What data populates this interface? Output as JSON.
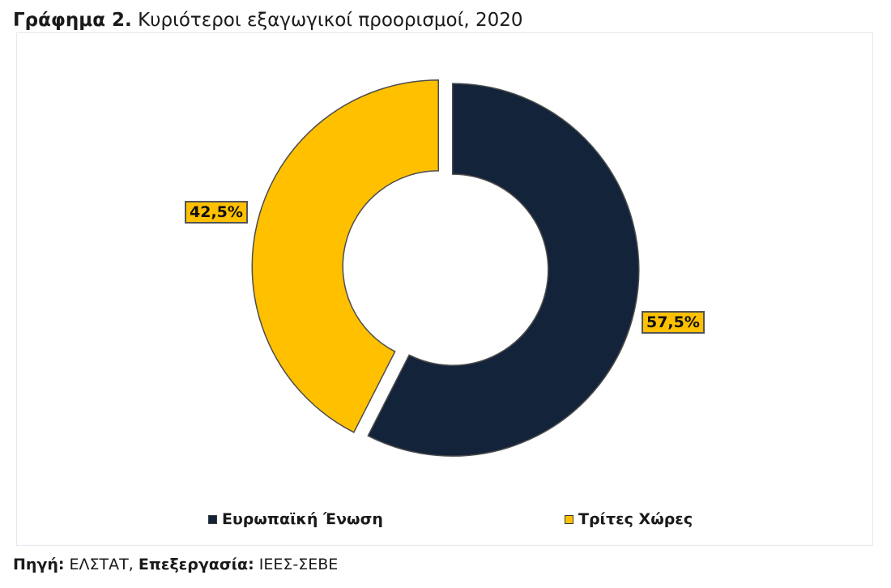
{
  "title": {
    "prefix": "Γράφημα 2.",
    "text": "Κυριότεροι εξαγωγικοί προορισμοί, 2020"
  },
  "source": {
    "source_label": "Πηγή:",
    "source_value": "ΕΛΣΤΑΤ,",
    "processing_label": "Επεξεργασία:",
    "processing_value": "ΙΕΕΣ-ΣΕΒΕ"
  },
  "colors": {
    "eu": "#13233a",
    "third": "#ffc000",
    "separator": "#ffffff"
  },
  "chart_data": {
    "type": "pie",
    "variant": "doughnut",
    "title": "Κυριότεροι εξαγωγικοί προορισμοί, 2020",
    "categories": [
      "Ευρωπαϊκή Ένωση",
      "Τρίτες Χώρες"
    ],
    "values": [
      57.5,
      42.5
    ],
    "value_labels": [
      "57,5%",
      "42,5%"
    ],
    "unit": "%",
    "legend_position": "bottom",
    "start_angle_deg": 0,
    "direction": "clockwise",
    "exploded_segments": true
  }
}
